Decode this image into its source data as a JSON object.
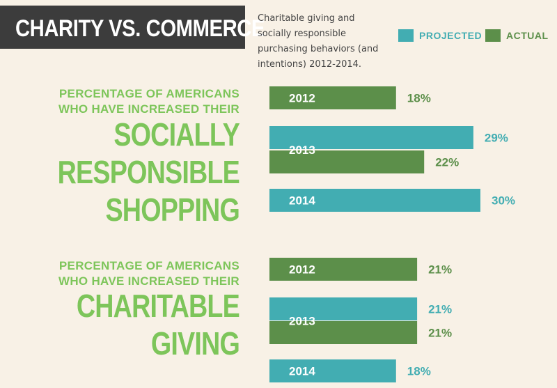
{
  "header": {
    "title": "CHARITY VS. COMMERCE",
    "subtitle": "Charitable giving and socially responsible purchasing behaviors (and intentions) 2012-2014."
  },
  "legend": {
    "projected": "PROJECTED",
    "actual": "ACTUAL"
  },
  "colors": {
    "projected": "#42adb2",
    "actual": "#5c8f4a",
    "headline": "#7dc55a",
    "title_bg": "#3c3c3c",
    "background": "#f8f1e6"
  },
  "sections": [
    {
      "lead_lines": [
        "PERCENTAGE OF AMERICANS",
        "WHO HAVE INCREASED THEIR"
      ],
      "big_lines": [
        "SOCIALLY",
        "RESPONSIBLE",
        "SHOPPING"
      ]
    },
    {
      "lead_lines": [
        "PERCENTAGE OF AMERICANS",
        "WHO HAVE INCREASED THEIR"
      ],
      "big_lines": [
        "CHARITABLE",
        "GIVING"
      ]
    }
  ],
  "chart_data": [
    {
      "type": "bar",
      "orientation": "horizontal",
      "title": "SOCIALLY RESPONSIBLE SHOPPING",
      "unit": "%",
      "rows": [
        {
          "year": "2012",
          "bars": [
            {
              "kind": "actual",
              "value": 18
            }
          ]
        },
        {
          "year": "2013",
          "bars": [
            {
              "kind": "projected",
              "value": 29
            },
            {
              "kind": "actual",
              "value": 22
            }
          ]
        },
        {
          "year": "2014",
          "bars": [
            {
              "kind": "projected",
              "value": 30
            }
          ]
        }
      ]
    },
    {
      "type": "bar",
      "orientation": "horizontal",
      "title": "CHARITABLE GIVING",
      "unit": "%",
      "rows": [
        {
          "year": "2012",
          "bars": [
            {
              "kind": "actual",
              "value": 21
            }
          ]
        },
        {
          "year": "2013",
          "bars": [
            {
              "kind": "projected",
              "value": 21
            },
            {
              "kind": "actual",
              "value": 21
            }
          ]
        },
        {
          "year": "2014",
          "bars": [
            {
              "kind": "projected",
              "value": 18
            }
          ]
        }
      ]
    }
  ]
}
